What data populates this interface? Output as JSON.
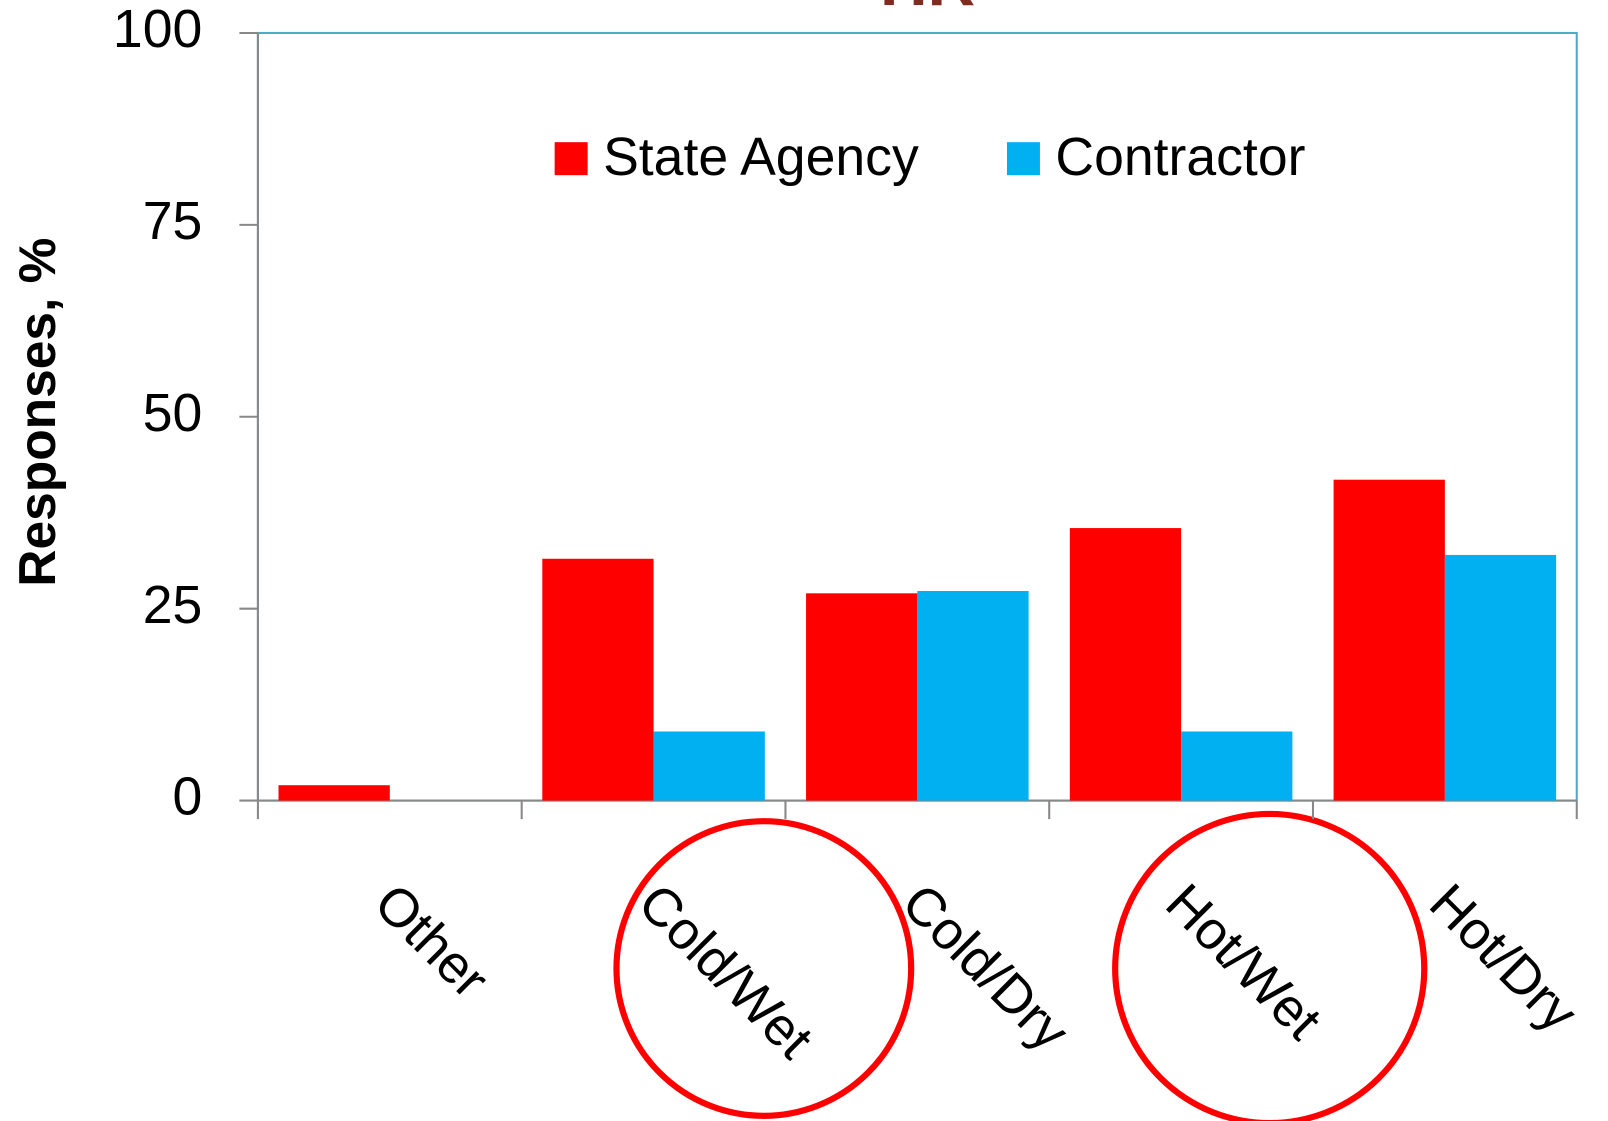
{
  "chart_data": {
    "type": "bar",
    "title": "HR",
    "y_label": "Responses, %",
    "categories": [
      "Other",
      "Cold/Wet",
      "Cold/Dry",
      "Hot/Wet",
      "Hot/Dry"
    ],
    "series": [
      {
        "name": "State Agency",
        "color": "#ff0000",
        "values": [
          2,
          31.5,
          27,
          35.5,
          41.8
        ]
      },
      {
        "name": "Contractor",
        "color": "#00b0f0",
        "values": [
          0,
          9,
          27.3,
          9,
          32
        ]
      }
    ],
    "ylim": [
      0,
      100
    ],
    "yticks": [
      0,
      25,
      50,
      75,
      100
    ],
    "grid": false,
    "legend": "top"
  }
}
